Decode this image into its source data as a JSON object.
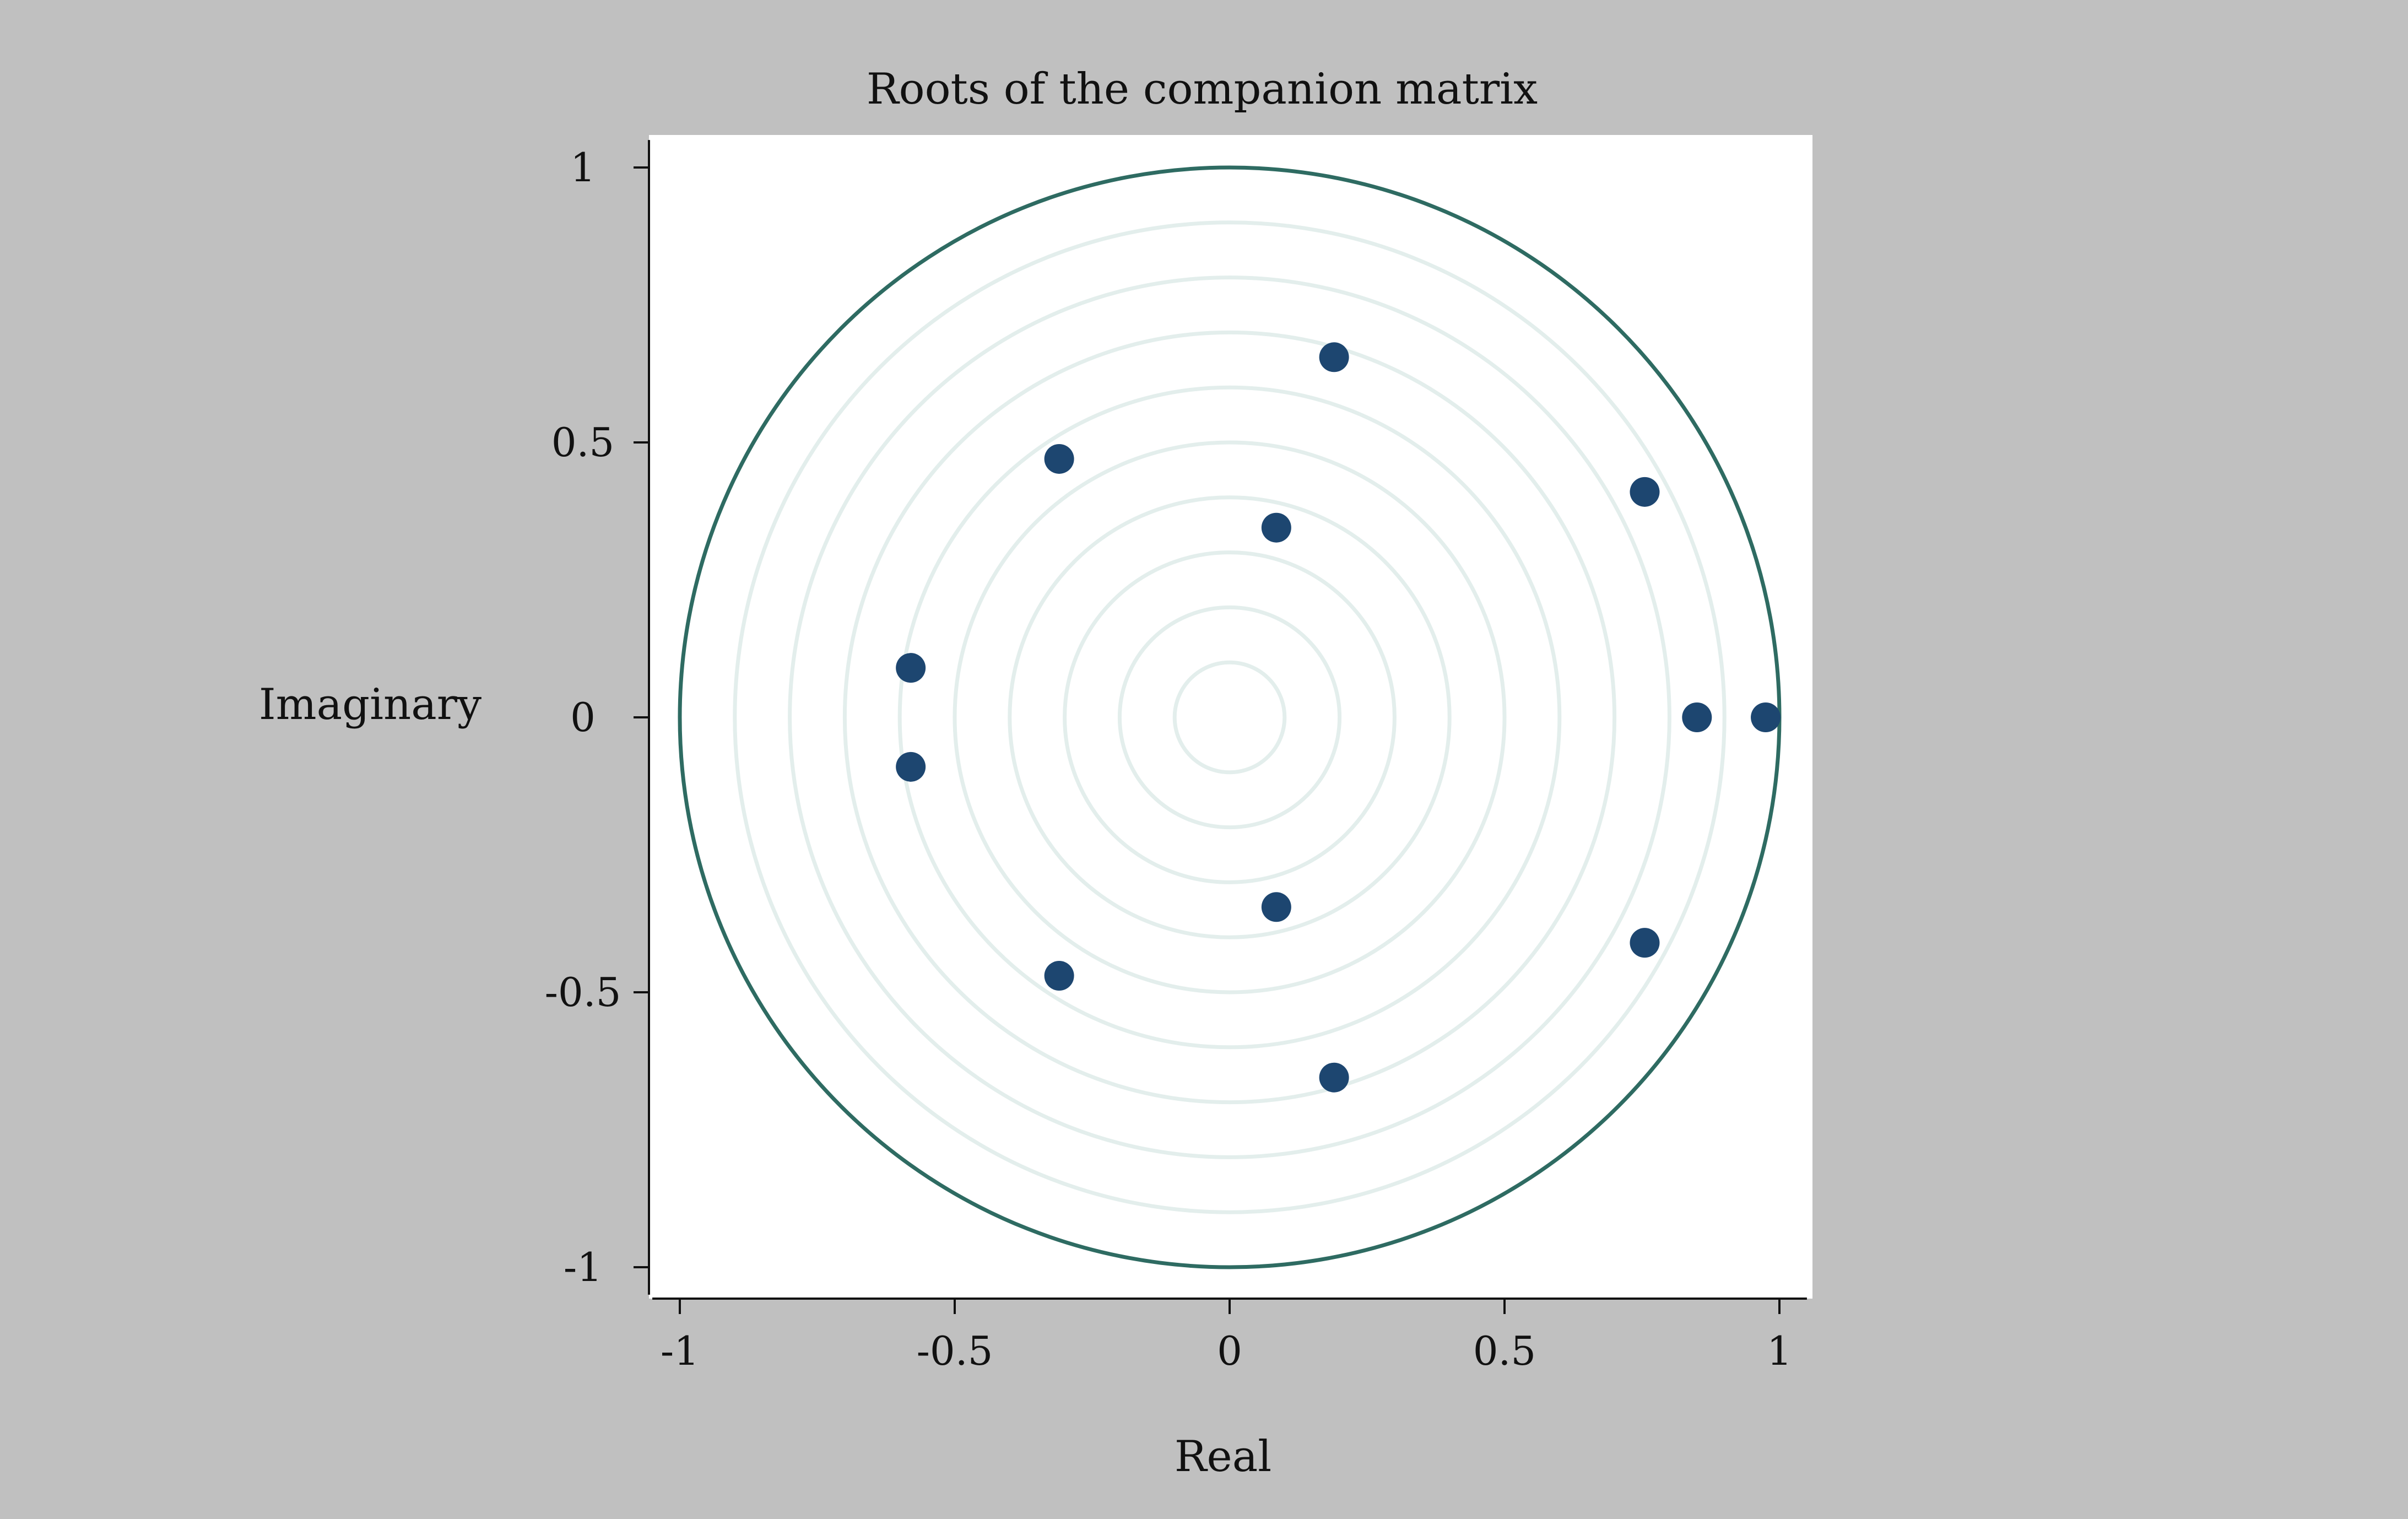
{
  "chart_data": {
    "type": "scatter",
    "title": "Roots of the companion matrix",
    "xlabel": "Real",
    "ylabel": "Imaginary",
    "xlim": [
      -1.05,
      1.05
    ],
    "ylim": [
      -1.05,
      1.05
    ],
    "x_ticks": [
      -1,
      -0.5,
      0,
      0.5,
      1
    ],
    "y_ticks": [
      -1,
      -0.5,
      0,
      0.5,
      1
    ],
    "x_tick_labels": [
      "-1",
      "-0.5",
      "0",
      "0.5",
      "1"
    ],
    "y_tick_labels": [
      "-1",
      "-0.5",
      "0",
      "0.5",
      "1"
    ],
    "unit_circle": true,
    "reference_circles": [
      0.1,
      0.2,
      0.3,
      0.4,
      0.5,
      0.6,
      0.7,
      0.8,
      0.9
    ],
    "grid": false,
    "colors": {
      "page_background": "#c0c0c0",
      "plot_background": "#ffffff",
      "unit_circle": "#2e6b62",
      "reference_circles": "#e3eeec",
      "points": "#1d4670"
    },
    "points": [
      {
        "x": 0.19,
        "y": 0.655
      },
      {
        "x": 0.19,
        "y": -0.655
      },
      {
        "x": -0.31,
        "y": 0.47
      },
      {
        "x": -0.31,
        "y": -0.47
      },
      {
        "x": 0.085,
        "y": 0.345
      },
      {
        "x": 0.085,
        "y": -0.345
      },
      {
        "x": 0.755,
        "y": 0.41
      },
      {
        "x": 0.755,
        "y": -0.41
      },
      {
        "x": -0.58,
        "y": 0.09
      },
      {
        "x": -0.58,
        "y": -0.09
      },
      {
        "x": 0.85,
        "y": 0.0
      },
      {
        "x": 0.975,
        "y": 0.0
      }
    ]
  }
}
